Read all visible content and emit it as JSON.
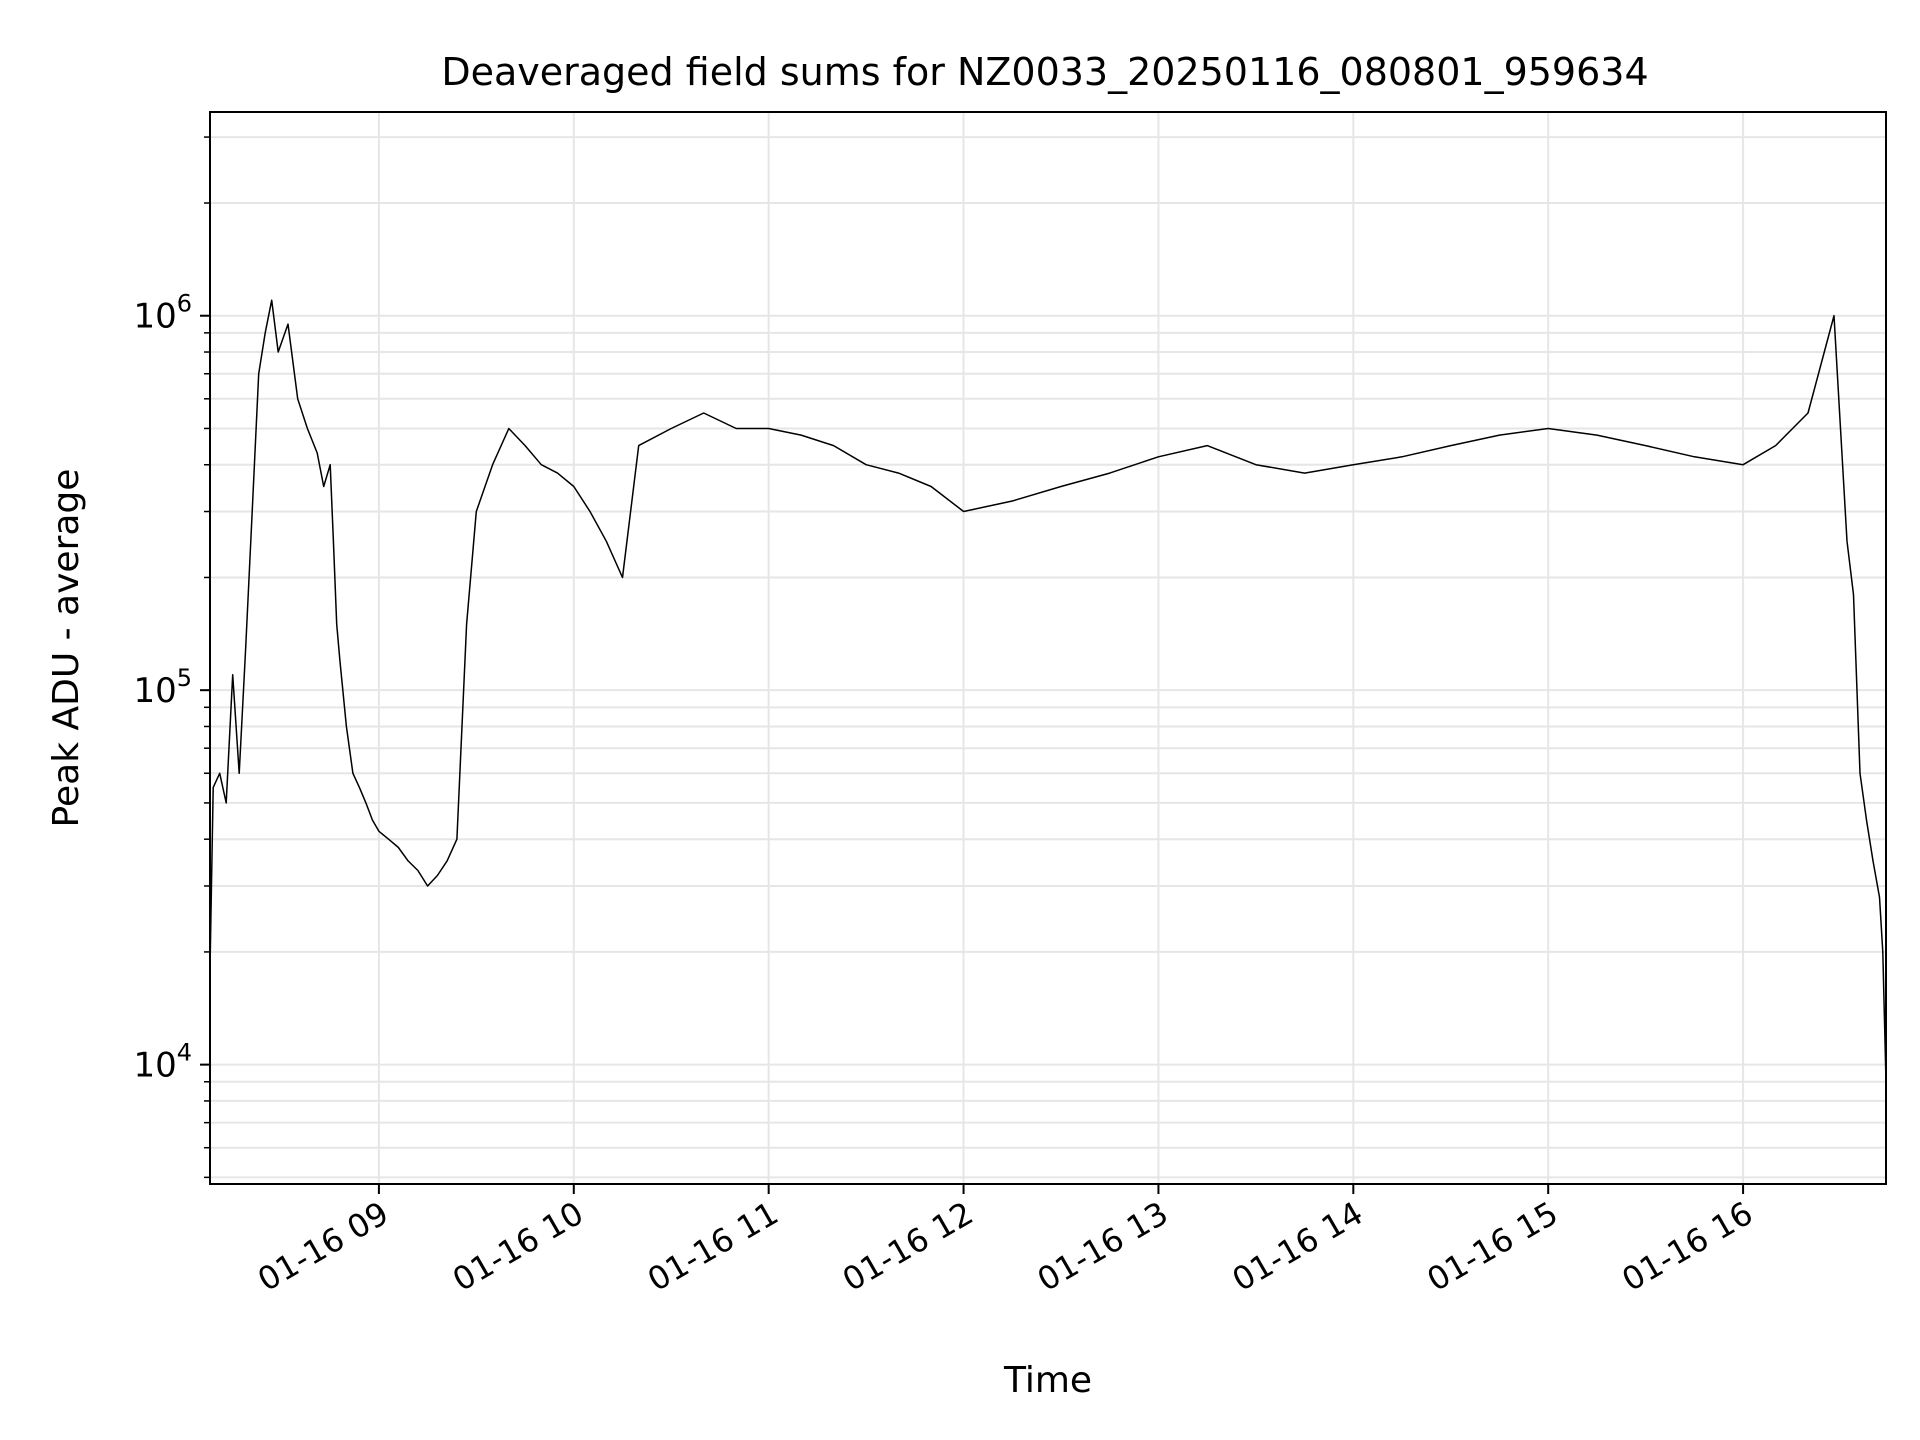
{
  "chart_data": {
    "type": "line",
    "title": "Deaveraged field sums for NZ0033_20250116_080801_959634",
    "xlabel": "Time",
    "ylabel": "Peak ADU - average",
    "yscale": "log",
    "ylim": [
      4800,
      3500000
    ],
    "xlim": [
      "2025-01-16 08:08",
      "2025-01-16 16:44"
    ],
    "grid": true,
    "line_color": "#000000",
    "grid_color": "#e6e6e6",
    "x_ticks": [
      {
        "value": "2025-01-16 09:00",
        "label": "01-16 09"
      },
      {
        "value": "2025-01-16 10:00",
        "label": "01-16 10"
      },
      {
        "value": "2025-01-16 11:00",
        "label": "01-16 11"
      },
      {
        "value": "2025-01-16 12:00",
        "label": "01-16 12"
      },
      {
        "value": "2025-01-16 13:00",
        "label": "01-16 13"
      },
      {
        "value": "2025-01-16 14:00",
        "label": "01-16 14"
      },
      {
        "value": "2025-01-16 15:00",
        "label": "01-16 15"
      },
      {
        "value": "2025-01-16 16:00",
        "label": "01-16 16"
      }
    ],
    "y_ticks": [
      {
        "value": 10000,
        "base": "10",
        "exp": "4"
      },
      {
        "value": 100000,
        "base": "10",
        "exp": "5"
      },
      {
        "value": 1000000,
        "base": "10",
        "exp": "6"
      }
    ],
    "series": [
      {
        "x": [
          "2025-01-16 08:08",
          "2025-01-16 08:09",
          "2025-01-16 08:11",
          "2025-01-16 08:13",
          "2025-01-16 08:15",
          "2025-01-16 08:17",
          "2025-01-16 08:19",
          "2025-01-16 08:21",
          "2025-01-16 08:23",
          "2025-01-16 08:25",
          "2025-01-16 08:27",
          "2025-01-16 08:29",
          "2025-01-16 08:32",
          "2025-01-16 08:35",
          "2025-01-16 08:38",
          "2025-01-16 08:41",
          "2025-01-16 08:43",
          "2025-01-16 08:45",
          "2025-01-16 08:46",
          "2025-01-16 08:47",
          "2025-01-16 08:48",
          "2025-01-16 08:50",
          "2025-01-16 08:52",
          "2025-01-16 08:54",
          "2025-01-16 08:56",
          "2025-01-16 08:58",
          "2025-01-16 09:00",
          "2025-01-16 09:03",
          "2025-01-16 09:06",
          "2025-01-16 09:09",
          "2025-01-16 09:12",
          "2025-01-16 09:15",
          "2025-01-16 09:18",
          "2025-01-16 09:21",
          "2025-01-16 09:24",
          "2025-01-16 09:27",
          "2025-01-16 09:30",
          "2025-01-16 09:35",
          "2025-01-16 09:40",
          "2025-01-16 09:45",
          "2025-01-16 09:50",
          "2025-01-16 09:55",
          "2025-01-16 10:00",
          "2025-01-16 10:05",
          "2025-01-16 10:10",
          "2025-01-16 10:15",
          "2025-01-16 10:20",
          "2025-01-16 10:30",
          "2025-01-16 10:40",
          "2025-01-16 10:50",
          "2025-01-16 11:00",
          "2025-01-16 11:10",
          "2025-01-16 11:20",
          "2025-01-16 11:30",
          "2025-01-16 11:40",
          "2025-01-16 11:50",
          "2025-01-16 12:00",
          "2025-01-16 12:15",
          "2025-01-16 12:30",
          "2025-01-16 12:45",
          "2025-01-16 13:00",
          "2025-01-16 13:15",
          "2025-01-16 13:30",
          "2025-01-16 13:45",
          "2025-01-16 14:00",
          "2025-01-16 14:15",
          "2025-01-16 14:30",
          "2025-01-16 14:45",
          "2025-01-16 15:00",
          "2025-01-16 15:15",
          "2025-01-16 15:30",
          "2025-01-16 15:45",
          "2025-01-16 16:00",
          "2025-01-16 16:10",
          "2025-01-16 16:20",
          "2025-01-16 16:25",
          "2025-01-16 16:28",
          "2025-01-16 16:30",
          "2025-01-16 16:32",
          "2025-01-16 16:34",
          "2025-01-16 16:36",
          "2025-01-16 16:38",
          "2025-01-16 16:40",
          "2025-01-16 16:42",
          "2025-01-16 16:43",
          "2025-01-16 16:44"
        ],
        "y": [
          18000,
          55000,
          60000,
          50000,
          110000,
          60000,
          130000,
          300000,
          700000,
          900000,
          1100000,
          800000,
          950000,
          600000,
          500000,
          430000,
          350000,
          400000,
          250000,
          150000,
          120000,
          80000,
          60000,
          55000,
          50000,
          45000,
          42000,
          40000,
          38000,
          35000,
          33000,
          30000,
          32000,
          35000,
          40000,
          150000,
          300000,
          400000,
          500000,
          450000,
          400000,
          380000,
          350000,
          300000,
          250000,
          200000,
          450000,
          500000,
          550000,
          500000,
          500000,
          480000,
          450000,
          400000,
          380000,
          350000,
          300000,
          320000,
          350000,
          380000,
          420000,
          450000,
          400000,
          380000,
          400000,
          420000,
          450000,
          480000,
          500000,
          480000,
          450000,
          420000,
          400000,
          450000,
          550000,
          800000,
          1000000,
          500000,
          250000,
          180000,
          60000,
          45000,
          35000,
          28000,
          20000,
          9000
        ]
      }
    ]
  }
}
